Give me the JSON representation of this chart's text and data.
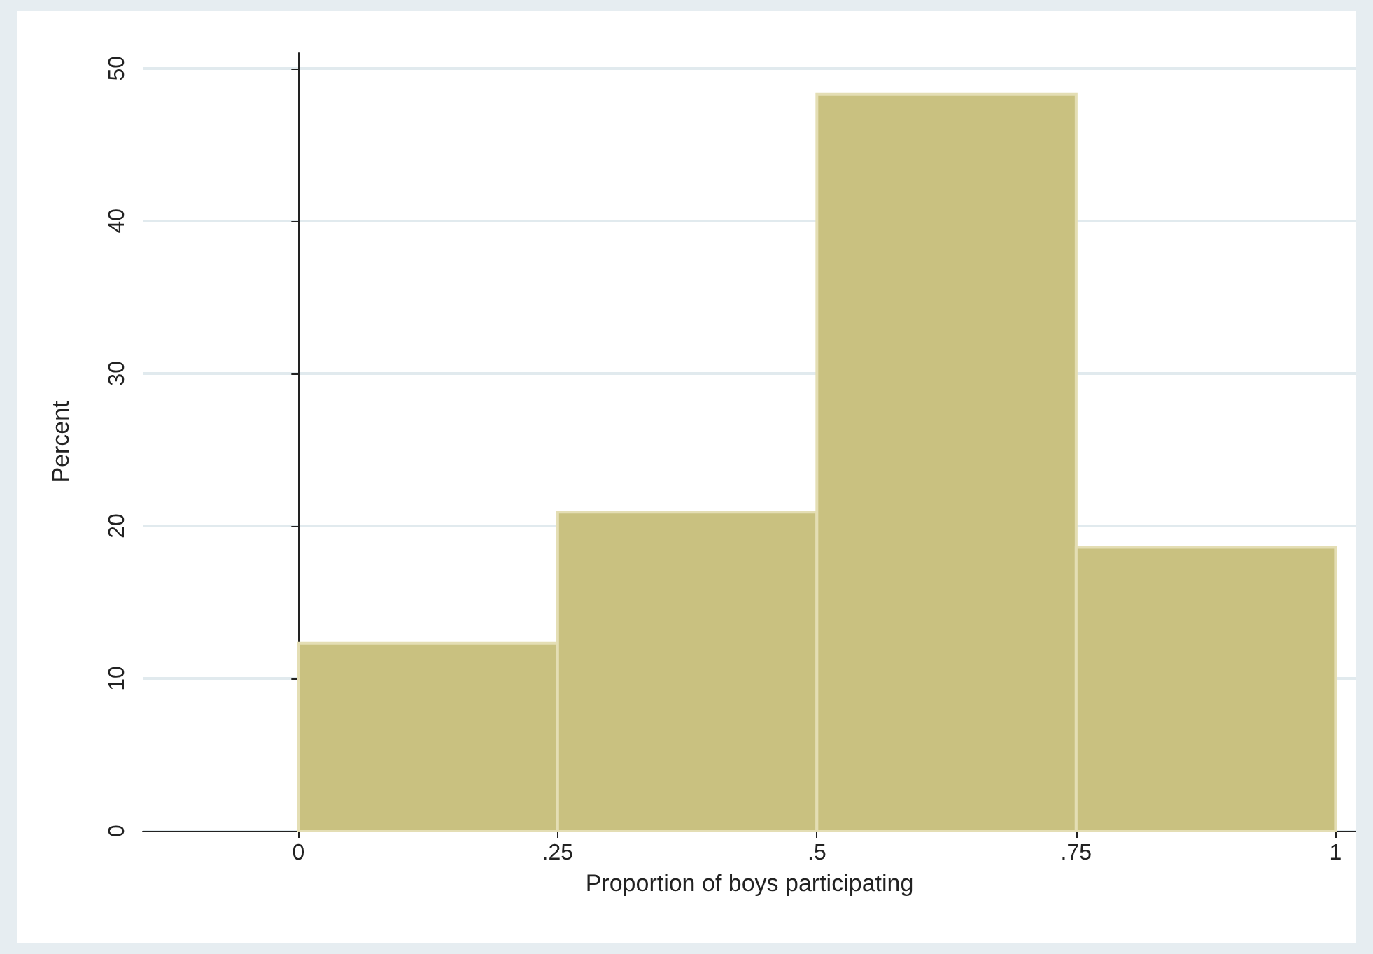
{
  "chart_data": {
    "type": "histogram",
    "xlabel": "Proportion of boys participating",
    "ylabel": "Percent",
    "bins": [
      0,
      0.25,
      0.5,
      0.75,
      1
    ],
    "values": [
      12.3,
      20.9,
      48.3,
      18.6
    ],
    "color": "#c9c180",
    "xlim": [
      -0.15,
      1.02
    ],
    "ylim": [
      0,
      51
    ],
    "xticks": [
      0,
      {
        "value": 0.25,
        "label": ".25"
      },
      {
        "value": 0.5,
        "label": ".5"
      },
      {
        "value": 0.75,
        "label": ".75"
      },
      1
    ],
    "yticks": [
      0,
      10,
      20,
      30,
      40,
      50
    ],
    "grid": "y"
  }
}
